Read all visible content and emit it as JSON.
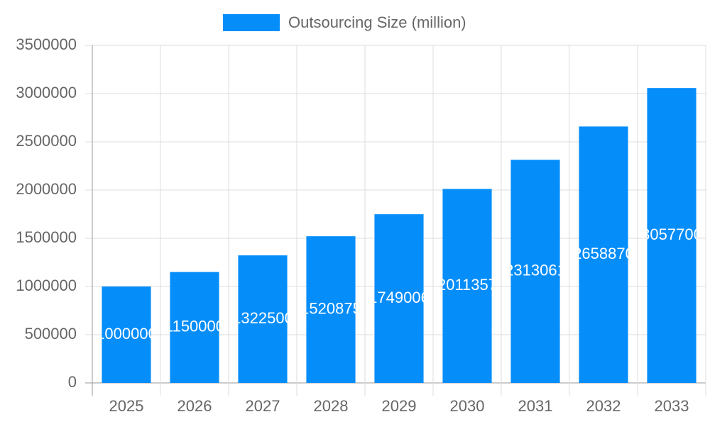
{
  "chart_data": {
    "type": "bar",
    "categories": [
      "2025",
      "2026",
      "2027",
      "2028",
      "2029",
      "2030",
      "2031",
      "2032",
      "2033"
    ],
    "series": [
      {
        "name": "Outsourcing Size (million)",
        "color": "#058dfa",
        "values": [
          1000000,
          1150000,
          1322500,
          1520875,
          1749006,
          2011357,
          2313061,
          2658870,
          3057700
        ]
      }
    ],
    "ylim": [
      0,
      3500000
    ],
    "yticks": [
      0,
      500000,
      1000000,
      1500000,
      2000000,
      2500000,
      3000000,
      3500000
    ],
    "grid": true,
    "legend": "top"
  }
}
